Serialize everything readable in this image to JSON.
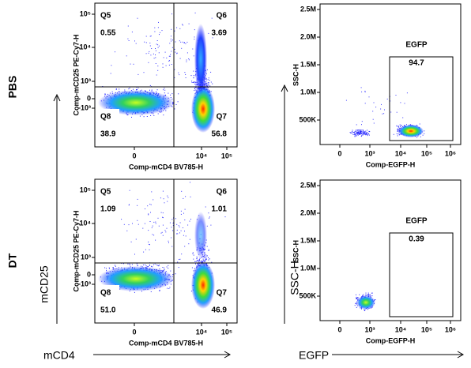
{
  "row_labels": [
    "PBS",
    "DT"
  ],
  "axis_arrows": {
    "left_y": "mCD25",
    "left_x": "mCD4",
    "right_y": "SSC-H",
    "right_x": "EGFP"
  },
  "panels": [
    {
      "x_label": "Comp-mCD4 BV785-H",
      "y_label": "Comp-mCD25 PE-Cy7-H",
      "xticks": [
        "0",
        "10⁴",
        "10⁵"
      ],
      "yticks": [
        "10⁵",
        "10⁴",
        "10³",
        "0",
        "-10³"
      ],
      "quadrants": [
        {
          "name": "Q5",
          "value": "0.55"
        },
        {
          "name": "Q6",
          "value": "3.69"
        },
        {
          "name": "Q8",
          "value": "38.9"
        },
        {
          "name": "Q7",
          "value": "56.8"
        }
      ]
    },
    {
      "x_label": "Comp-EGFP-H",
      "y_label": "SSC-H",
      "xticks": [
        "0",
        "10³",
        "10⁴",
        "10⁵",
        "10⁶"
      ],
      "yticks": [
        "2.5M",
        "2.0M",
        "1.5M",
        "1.0M",
        "500K"
      ],
      "gate": {
        "name": "EGFP",
        "value": "94.7"
      }
    },
    {
      "x_label": "Comp-mCD4 BV785-H",
      "y_label": "Comp-mCD25 PE-Cy7-H",
      "xticks": [
        "0",
        "10⁴",
        "10⁵"
      ],
      "yticks": [
        "10⁵",
        "10⁴",
        "10³",
        "0",
        "-10³"
      ],
      "quadrants": [
        {
          "name": "Q5",
          "value": "1.09"
        },
        {
          "name": "Q6",
          "value": "1.01"
        },
        {
          "name": "Q8",
          "value": "51.0"
        },
        {
          "name": "Q7",
          "value": "46.9"
        }
      ]
    },
    {
      "x_label": "Comp-EGFP-H",
      "y_label": "SSC-H",
      "xticks": [
        "0",
        "10³",
        "10⁴",
        "10⁵",
        "10⁶"
      ],
      "yticks": [
        "2.5M",
        "2.0M",
        "1.5M",
        "1.0M",
        "500K"
      ],
      "gate": {
        "name": "EGFP",
        "value": "0.39"
      }
    }
  ]
}
